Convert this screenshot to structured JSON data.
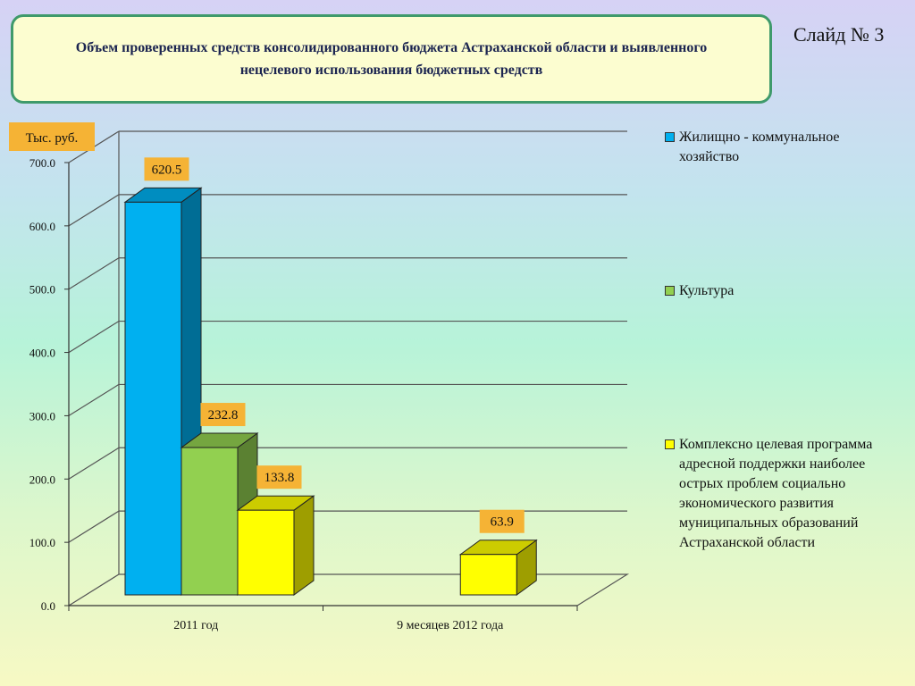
{
  "slide": {
    "title": "Объем проверенных средств консолидированного бюджета Астраханской области и выявленного нецелевого использования бюджетных средств",
    "slide_number": "Слайд № 3"
  },
  "colors": {
    "housing": "#00b0f0",
    "culture": "#92d050",
    "program": "#ffff00",
    "label_bg": "#f5b335"
  },
  "chart_data": {
    "type": "bar",
    "unit_label": "Тыс. руб.",
    "categories": [
      "2011 год",
      "9 месяцев 2012 года"
    ],
    "series": [
      {
        "name": "Жилищно - коммунальное хозяйство",
        "values": [
          620.5,
          null
        ],
        "data_labels": [
          "620.5",
          ""
        ]
      },
      {
        "name": "Культура",
        "values": [
          232.8,
          null
        ],
        "data_labels": [
          "232.8",
          ""
        ]
      },
      {
        "name": "Комплексно целевая программа адресной поддержки наиболее острых проблем социально экономического развития муниципальных образований Астраханской области",
        "values": [
          133.8,
          63.9
        ],
        "data_labels": [
          "133.8",
          "63.9"
        ]
      }
    ],
    "y_ticks": [
      "0.0",
      "100.0",
      "200.0",
      "300.0",
      "400.0",
      "500.0",
      "600.0",
      "700.0"
    ],
    "ylim": [
      0,
      700
    ],
    "grid": true,
    "legend_position": "right"
  }
}
